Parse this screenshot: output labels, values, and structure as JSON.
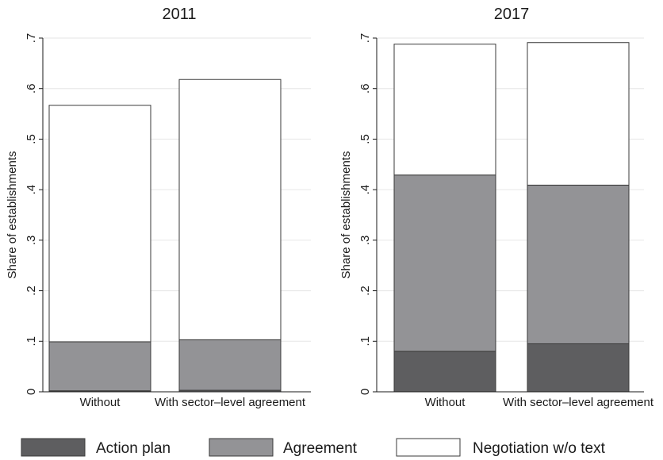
{
  "chart_data": [
    {
      "type": "bar",
      "stacked": true,
      "title": "2011",
      "ylabel": "Share of establishments",
      "xlabel": "",
      "ylim": [
        0,
        0.7
      ],
      "yticks": [
        0,
        0.1,
        0.2,
        0.3,
        0.4,
        0.5,
        0.6,
        0.7
      ],
      "ytick_labels": [
        "0",
        ".1",
        ".2",
        ".3",
        ".4",
        ".5",
        ".6",
        ".7"
      ],
      "grid": true,
      "categories": [
        "Without",
        "With sector–level agreement"
      ],
      "series": [
        {
          "name": "Action plan",
          "values": [
            0.002,
            0.003
          ]
        },
        {
          "name": "Agreement",
          "values": [
            0.097,
            0.1
          ]
        },
        {
          "name": "Negotiation w/o text",
          "values": [
            0.468,
            0.515
          ]
        }
      ]
    },
    {
      "type": "bar",
      "stacked": true,
      "title": "2017",
      "ylabel": "Share of establishments",
      "xlabel": "",
      "ylim": [
        0,
        0.7
      ],
      "yticks": [
        0,
        0.1,
        0.2,
        0.3,
        0.4,
        0.5,
        0.6,
        0.7
      ],
      "ytick_labels": [
        "0",
        ".1",
        ".2",
        ".3",
        ".4",
        ".5",
        ".6",
        ".7"
      ],
      "grid": true,
      "categories": [
        "Without",
        "With sector–level agreement"
      ],
      "series": [
        {
          "name": "Action plan",
          "values": [
            0.08,
            0.095
          ]
        },
        {
          "name": "Agreement",
          "values": [
            0.349,
            0.314
          ]
        },
        {
          "name": "Negotiation w/o text",
          "values": [
            0.259,
            0.282
          ]
        }
      ]
    }
  ],
  "legend": {
    "position": "bottom",
    "items": [
      {
        "label": "Action plan",
        "color": "#5e5e60"
      },
      {
        "label": "Agreement",
        "color": "#939396"
      },
      {
        "label": "Negotiation w/o text",
        "color": "#ffffff"
      }
    ]
  },
  "colors": {
    "bar_outline": "#3a3a3a",
    "grid": "#e6e6e6",
    "axis": "#1a1a1a"
  }
}
